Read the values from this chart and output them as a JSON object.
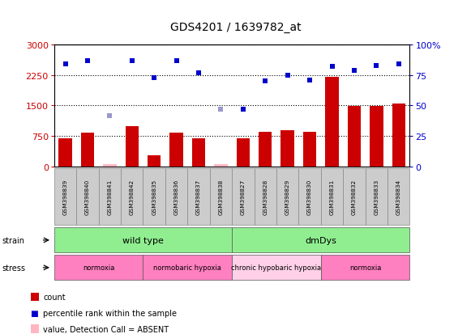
{
  "title": "GDS4201 / 1639782_at",
  "samples": [
    "GSM398839",
    "GSM398840",
    "GSM398841",
    "GSM398842",
    "GSM398835",
    "GSM398836",
    "GSM398837",
    "GSM398838",
    "GSM398827",
    "GSM398828",
    "GSM398829",
    "GSM398830",
    "GSM398831",
    "GSM398832",
    "GSM398833",
    "GSM398834"
  ],
  "counts": [
    700,
    840,
    50,
    1000,
    280,
    830,
    700,
    50,
    700,
    850,
    900,
    850,
    2200,
    1480,
    1480,
    1550
  ],
  "absent_count": [
    null,
    null,
    50,
    null,
    null,
    null,
    null,
    50,
    null,
    null,
    null,
    null,
    null,
    null,
    null,
    null
  ],
  "ranks": [
    84,
    87,
    null,
    87,
    73,
    87,
    77,
    null,
    47,
    70,
    75,
    71,
    82,
    79,
    83,
    84
  ],
  "absent_rank": [
    null,
    null,
    42,
    null,
    null,
    null,
    null,
    47,
    null,
    null,
    null,
    null,
    null,
    null,
    null,
    null
  ],
  "left_yticks": [
    0,
    750,
    1500,
    2250,
    3000
  ],
  "right_yticks": [
    0,
    25,
    50,
    75,
    100
  ],
  "strain_labels": [
    {
      "label": "wild type",
      "start": 0,
      "end": 8,
      "color": "#90EE90"
    },
    {
      "label": "dmDys",
      "start": 8,
      "end": 16,
      "color": "#90EE90"
    }
  ],
  "stress_labels": [
    {
      "label": "normoxia",
      "start": 0,
      "end": 4,
      "color": "#FF80C0"
    },
    {
      "label": "normobaric hypoxia",
      "start": 4,
      "end": 8,
      "color": "#FF80C0"
    },
    {
      "label": "chronic hypobaric hypoxia",
      "start": 8,
      "end": 12,
      "color": "#FFD0E8"
    },
    {
      "label": "normoxia",
      "start": 12,
      "end": 16,
      "color": "#FF80C0"
    }
  ],
  "bar_color": "#CC0000",
  "dot_color": "#0000CC",
  "absent_bar_color": "#FFB6C1",
  "absent_dot_color": "#9999CC"
}
